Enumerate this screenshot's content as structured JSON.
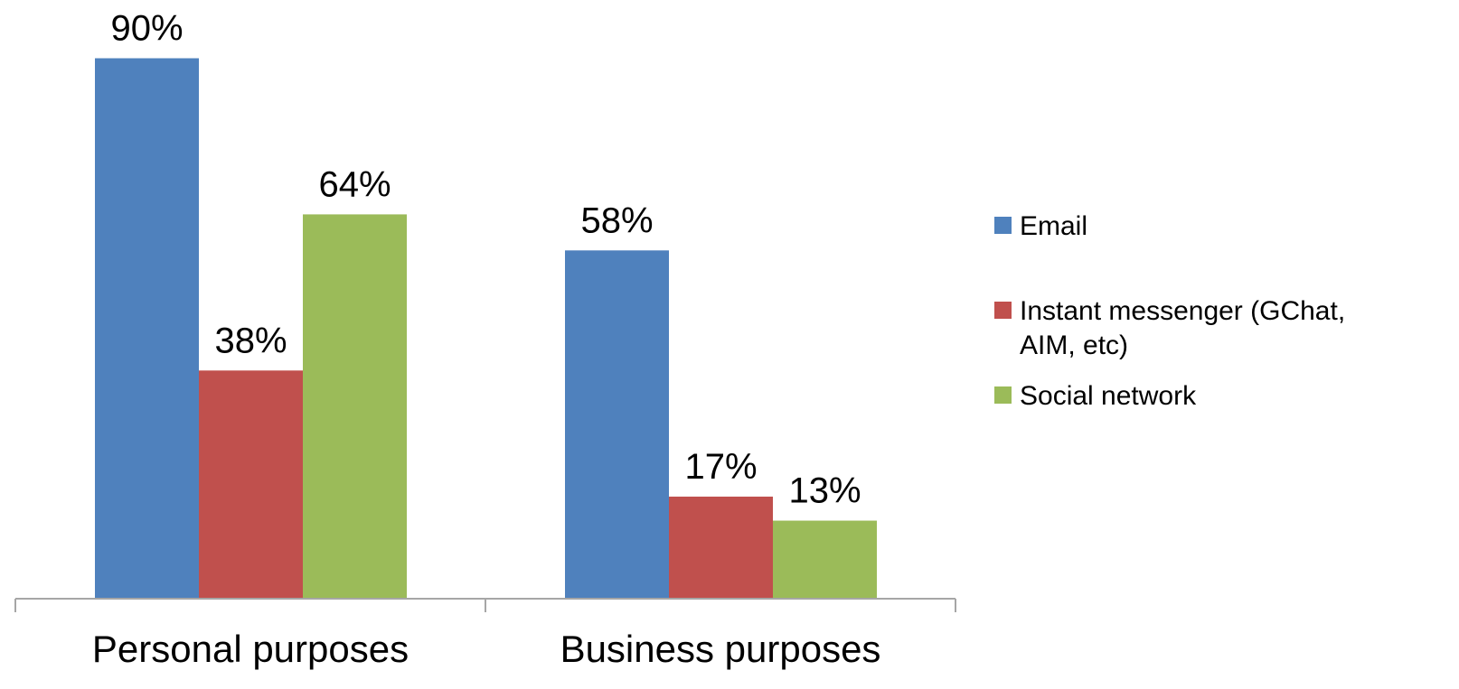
{
  "chart_data": {
    "type": "bar",
    "categories": [
      "Personal purposes",
      "Business purposes"
    ],
    "series": [
      {
        "name": "Email",
        "color": "#4F81BD",
        "values": [
          90,
          58
        ],
        "labels": [
          "90%",
          "58%"
        ]
      },
      {
        "name": "Instant messenger (GChat, AIM, etc)",
        "legend_lines": [
          "Instant messenger (GChat,",
          "AIM, etc)"
        ],
        "color": "#C0504D",
        "values": [
          38,
          17
        ],
        "labels": [
          "38%",
          "17%"
        ]
      },
      {
        "name": "Social network",
        "color": "#9BBB59",
        "values": [
          64,
          13
        ],
        "labels": [
          "64%",
          "13%"
        ]
      }
    ],
    "ylim": [
      0,
      100
    ],
    "grid": false,
    "legend": "right",
    "axis_color": "#A6A6A6"
  }
}
